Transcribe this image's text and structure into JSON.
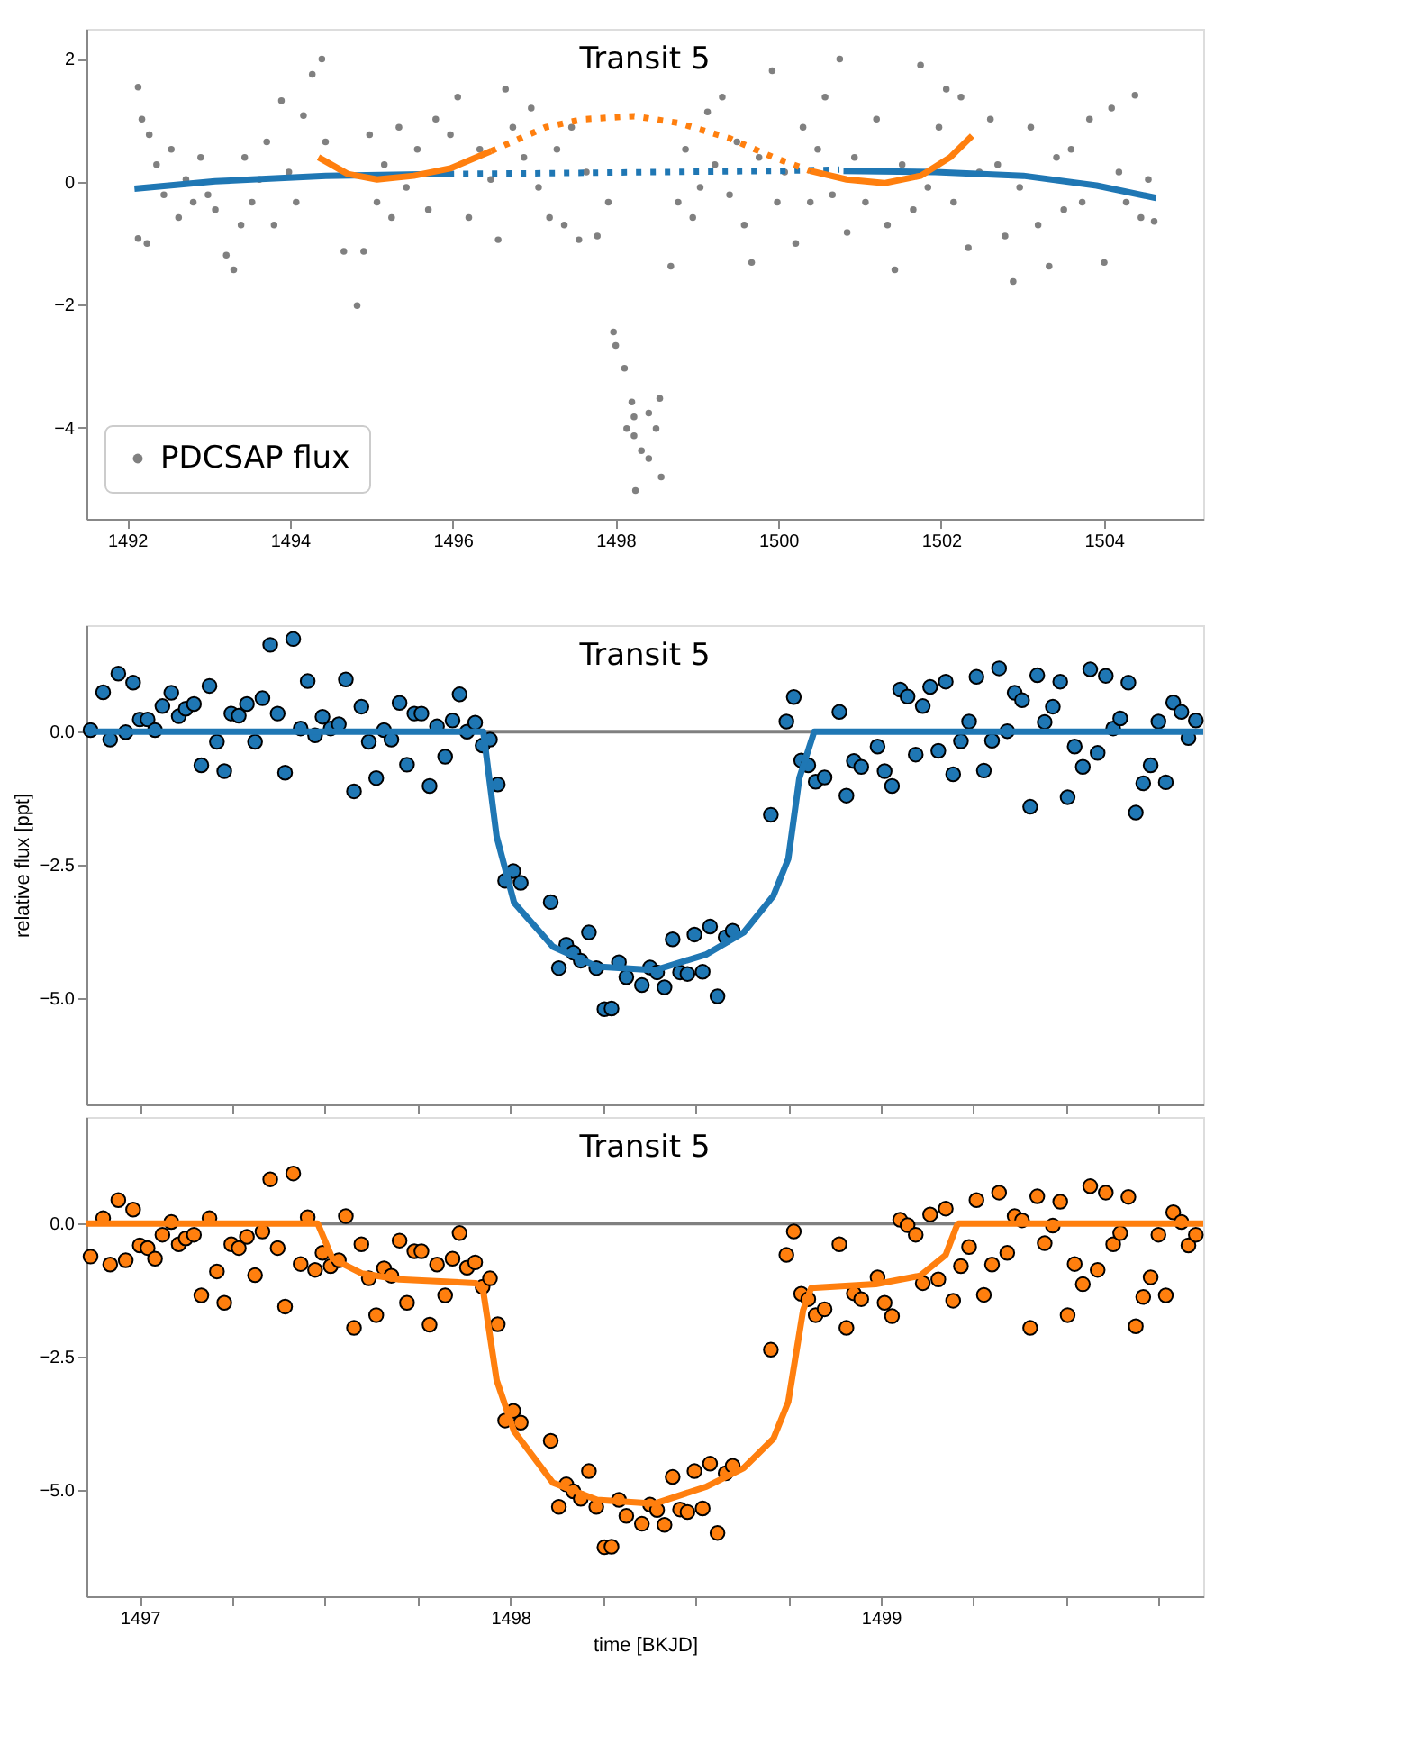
{
  "chart_data": [
    {
      "type": "scatter",
      "title": "Transit 5",
      "legend": "bottom left",
      "xlim": [
        1491.5,
        1505.22
      ],
      "ylim": [
        -5.48,
        2.49
      ],
      "xticks": [
        1492,
        1494,
        1496,
        1498,
        1500,
        1502,
        1504
      ],
      "yticks": [
        {
          "value": -4,
          "label": "−4"
        },
        {
          "value": -2,
          "label": "−2"
        },
        0,
        2
      ],
      "series": [
        {
          "name": "PDCSAP flux",
          "marker": "circle",
          "color": "#808080",
          "x": [
            1492.135,
            1492.181,
            1492.135,
            1492.244,
            1492.271,
            1492.361,
            1492.451,
            1492.542,
            1492.632,
            1492.722,
            1492.812,
            1492.903,
            1492.993,
            1493.083,
            1493.218,
            1493.309,
            1493.399,
            1493.444,
            1493.534,
            1493.625,
            1493.715,
            1493.805,
            1493.895,
            1493.986,
            1494.076,
            1494.166,
            1494.274,
            1494.392,
            1494.437,
            1494.662,
            1494.825,
            1494.906,
            1494.978,
            1495.069,
            1495.159,
            1495.249,
            1495.339,
            1495.43,
            1495.565,
            1495.7,
            1495.791,
            1495.971,
            1496.061,
            1496.197,
            1496.332,
            1496.467,
            1496.558,
            1496.648,
            1496.738,
            1496.874,
            1496.964,
            1497.054,
            1497.189,
            1497.28,
            1497.37,
            1497.46,
            1497.55,
            1497.641,
            1497.776,
            1497.911,
            1497.975,
            1498.002,
            1498.11,
            1498.2,
            1498.137,
            1498.227,
            1498.318,
            1498.408,
            1498.498,
            1498.543,
            1498.408,
            1498.227,
            1498.245,
            1498.561,
            1498.679,
            1498.769,
            1498.859,
            1498.949,
            1499.04,
            1499.13,
            1499.22,
            1499.311,
            1499.401,
            1499.491,
            1499.581,
            1499.672,
            1499.762,
            1499.924,
            1499.987,
            1500.078,
            1500.213,
            1500.303,
            1500.393,
            1500.484,
            1500.574,
            1500.664,
            1500.754,
            1500.845,
            1500.935,
            1501.07,
            1501.206,
            1501.341,
            1501.431,
            1501.521,
            1501.657,
            1501.747,
            1501.837,
            1501.973,
            1502.063,
            1502.153,
            1502.244,
            1502.334,
            1502.469,
            1502.605,
            1502.695,
            1502.785,
            1502.884,
            1502.965,
            1503.101,
            1503.191,
            1503.326,
            1503.417,
            1503.507,
            1503.597,
            1503.733,
            1503.823,
            1504.003,
            1504.094,
            1504.184,
            1504.274,
            1504.382,
            1504.455,
            1504.545,
            1504.617
          ],
          "values": [
            1.54,
            1.02,
            -0.92,
            -1.0,
            0.77,
            0.28,
            -0.21,
            0.53,
            -0.58,
            0.04,
            -0.33,
            0.4,
            -0.21,
            -0.45,
            -1.19,
            -1.43,
            -0.7,
            0.4,
            -0.33,
            0.04,
            0.65,
            -0.7,
            1.32,
            0.16,
            -0.33,
            1.08,
            1.75,
            2.0,
            0.65,
            -1.13,
            -2.01,
            -1.13,
            0.77,
            -0.33,
            0.28,
            -0.58,
            0.89,
            -0.09,
            0.53,
            -0.45,
            1.02,
            0.77,
            1.38,
            -0.58,
            0.53,
            0.04,
            -0.94,
            1.51,
            0.89,
            0.4,
            1.2,
            -0.09,
            -0.58,
            0.53,
            -0.7,
            0.89,
            -0.94,
            0.16,
            -0.88,
            -0.33,
            -2.44,
            -2.66,
            -3.03,
            -3.58,
            -4.01,
            -4.13,
            -4.37,
            -4.5,
            -4.01,
            -3.52,
            -3.76,
            -3.82,
            -5.02,
            -4.8,
            -1.37,
            -0.33,
            0.53,
            -0.58,
            -0.09,
            1.14,
            0.28,
            1.38,
            -0.21,
            0.65,
            -0.7,
            -1.31,
            0.4,
            1.81,
            -0.33,
            0.16,
            -1.0,
            0.89,
            -0.33,
            0.53,
            1.38,
            -0.21,
            2.0,
            -0.82,
            0.4,
            -0.33,
            1.02,
            -0.7,
            -1.43,
            0.28,
            -0.45,
            1.9,
            -0.09,
            0.89,
            1.51,
            -0.33,
            1.38,
            -1.07,
            0.16,
            1.02,
            0.28,
            -0.88,
            -1.62,
            -0.09,
            0.89,
            -0.7,
            -1.37,
            0.4,
            -0.45,
            0.53,
            -0.33,
            1.02,
            -1.31,
            1.2,
            0.16,
            -0.33,
            1.41,
            -0.58,
            0.04,
            -0.64
          ]
        },
        {
          "type": "line",
          "color": "#1f77b4",
          "x": [
            1492.09,
            1493.08,
            1494.44,
            1495.95
          ],
          "values": [
            -0.11,
            0.01,
            0.1,
            0.13
          ]
        },
        {
          "type": "line",
          "color": "#1f77b4",
          "line_style": "dotted",
          "x": [
            1495.95,
            1497.0,
            1498.5,
            1500.0,
            1500.75
          ],
          "values": [
            0.13,
            0.14,
            0.16,
            0.18,
            0.2
          ]
        },
        {
          "type": "line",
          "color": "#1f77b4",
          "x": [
            1500.8,
            1501.93,
            1503.01,
            1503.91,
            1504.64
          ],
          "values": [
            0.18,
            0.16,
            0.1,
            -0.06,
            -0.26
          ]
        },
        {
          "type": "line",
          "color": "#ff7f0e",
          "x": [
            1494.35,
            1494.71,
            1495.07,
            1495.52,
            1495.97,
            1496.47
          ],
          "values": [
            0.4,
            0.13,
            0.04,
            0.1,
            0.22,
            0.5
          ]
        },
        {
          "type": "line",
          "color": "#ff7f0e",
          "line_style": "dotted",
          "x": [
            1496.47,
            1497.14,
            1497.6,
            1498.23,
            1498.77,
            1499.4,
            1499.94,
            1500.39
          ],
          "values": [
            0.5,
            0.89,
            1.02,
            1.07,
            0.96,
            0.71,
            0.4,
            0.18
          ]
        },
        {
          "type": "line",
          "color": "#ff7f0e",
          "x": [
            1500.39,
            1500.84,
            1501.3,
            1501.75,
            1502.11,
            1502.38
          ],
          "values": [
            0.18,
            0.04,
            -0.02,
            0.1,
            0.4,
            0.75
          ]
        }
      ]
    },
    {
      "type": "scatter",
      "title": "Transit 5",
      "ylabel": "relative flux [ppt]",
      "tick_labels": "y",
      "xlim": [
        1496.856,
        1499.87
      ],
      "ylim": [
        -7,
        2
      ],
      "xticks": [
        1497,
        {
          "value": 1497.25,
          "label": null
        },
        {
          "value": 1497.5,
          "label": null
        },
        {
          "value": 1497.75,
          "label": null
        },
        1498,
        {
          "value": 1498.25,
          "label": null
        },
        {
          "value": 1498.5,
          "label": null
        },
        {
          "value": 1498.75,
          "label": null
        },
        1499,
        {
          "value": 1499.25,
          "label": null
        },
        {
          "value": 1499.5,
          "label": null
        },
        {
          "value": 1499.75,
          "label": null
        }
      ],
      "yticks": [
        {
          "value": -5,
          "label": "−5.0"
        },
        {
          "value": -2.5,
          "label": "−2.5"
        },
        {
          "value": 0,
          "label": "0.0"
        }
      ],
      "ref_lines": [
        {
          "axis": "y",
          "value": 0,
          "color": "#808080"
        }
      ],
      "series": [
        {
          "marker": "circle",
          "color": "#1f77b4",
          "x": [
            1496.867,
            1496.901,
            1496.92,
            1496.942,
            1496.962,
            1496.982,
            1497.0,
            1497.021,
            1497.041,
            1497.061,
            1497.085,
            1497.105,
            1497.124,
            1497.146,
            1497.166,
            1497.188,
            1497.208,
            1497.228,
            1497.247,
            1497.267,
            1497.289,
            1497.311,
            1497.331,
            1497.352,
            1497.372,
            1497.392,
            1497.414,
            1497.434,
            1497.453,
            1497.473,
            1497.493,
            1497.515,
            1497.537,
            1497.556,
            1497.578,
            1497.598,
            1497.618,
            1497.638,
            1497.659,
            1497.679,
            1497.701,
            1497.721,
            1497.741,
            1497.76,
            1497.782,
            1497.802,
            1497.824,
            1497.844,
            1497.863,
            1497.883,
            1497.905,
            1497.925,
            1497.945,
            1497.966,
            1497.986,
            1498.008,
            1498.028,
            1498.109,
            1498.131,
            1498.151,
            1498.17,
            1498.19,
            1498.212,
            1498.232,
            1498.254,
            1498.273,
            1498.293,
            1498.313,
            1498.355,
            1498.377,
            1498.396,
            1498.416,
            1498.438,
            1498.458,
            1498.478,
            1498.497,
            1498.519,
            1498.539,
            1498.559,
            1498.581,
            1498.6,
            1498.703,
            1498.745,
            1498.765,
            1498.785,
            1498.804,
            1498.824,
            1498.848,
            1498.888,
            1498.907,
            1498.927,
            1498.947,
            1498.991,
            1499.01,
            1499.03,
            1499.052,
            1499.072,
            1499.094,
            1499.113,
            1499.133,
            1499.155,
            1499.175,
            1499.195,
            1499.216,
            1499.238,
            1499.258,
            1499.278,
            1499.3,
            1499.319,
            1499.341,
            1499.361,
            1499.381,
            1499.403,
            1499.422,
            1499.442,
            1499.464,
            1499.484,
            1499.504,
            1499.523,
            1499.545,
            1499.565,
            1499.585,
            1499.607,
            1499.627,
            1499.646,
            1499.668,
            1499.688,
            1499.708,
            1499.728,
            1499.749,
            1499.769,
            1499.789,
            1499.811,
            1499.83,
            1499.85
          ],
          "values": [
            0.03,
            0.74,
            -0.15,
            1.09,
            -0.01,
            0.92,
            0.23,
            0.23,
            0.03,
            0.48,
            0.73,
            0.29,
            0.43,
            0.52,
            -0.63,
            0.86,
            -0.19,
            -0.74,
            0.34,
            0.3,
            0.52,
            -0.19,
            0.63,
            1.63,
            0.34,
            -0.77,
            1.74,
            0.06,
            0.95,
            -0.07,
            0.28,
            0.06,
            0.14,
            0.98,
            -1.12,
            0.47,
            -0.19,
            -0.87,
            0.03,
            -0.15,
            0.54,
            -0.62,
            0.34,
            0.34,
            -1.02,
            0.1,
            -0.47,
            0.21,
            0.7,
            0.0,
            0.17,
            -0.26,
            -0.15,
            -0.99,
            -2.8,
            -2.62,
            -2.84,
            -3.2,
            -4.44,
            -4.0,
            -4.15,
            -4.3,
            -3.77,
            -4.44,
            -5.21,
            -5.2,
            -4.33,
            -4.61,
            -4.76,
            -4.43,
            -4.52,
            -4.8,
            -3.9,
            -4.52,
            -4.55,
            -3.81,
            -4.51,
            -3.66,
            -4.97,
            -3.86,
            -3.74,
            -1.56,
            0.19,
            0.65,
            -0.54,
            -0.63,
            -0.94,
            -0.86,
            0.37,
            -1.2,
            -0.55,
            -0.66,
            -0.28,
            -0.74,
            -1.02,
            0.79,
            0.66,
            -0.43,
            0.48,
            0.84,
            -0.36,
            0.94,
            -0.8,
            -0.18,
            0.19,
            1.03,
            -0.73,
            -0.17,
            1.19,
            0.01,
            0.73,
            0.59,
            -1.41,
            1.06,
            0.18,
            0.47,
            0.94,
            -1.23,
            -0.28,
            -0.66,
            1.17,
            -0.4,
            1.05,
            0.06,
            0.25,
            0.92,
            -1.52,
            -0.97,
            -0.63,
            0.19,
            -0.95,
            0.55,
            0.37,
            -0.12,
            0.21
          ]
        },
        {
          "type": "line",
          "color": "#1f77b4",
          "x": [
            1496.856,
            1497.927,
            1497.963,
            1498.01,
            1498.115,
            1498.234,
            1498.39,
            1498.53,
            1498.63,
            1498.71,
            1498.75,
            1498.78,
            1498.82,
            1499.87
          ],
          "values": [
            0,
            0,
            -1.97,
            -3.21,
            -4.04,
            -4.41,
            -4.48,
            -4.18,
            -3.77,
            -3.08,
            -2.39,
            -0.87,
            0,
            0
          ]
        }
      ]
    },
    {
      "type": "scatter",
      "title": "Transit 5",
      "xlabel": "time [BKJD]",
      "xlim": [
        1496.856,
        1499.87
      ],
      "ylim": [
        -7,
        2
      ],
      "xticks": [
        1497,
        {
          "value": 1497.25,
          "label": null
        },
        {
          "value": 1497.5,
          "label": null
        },
        {
          "value": 1497.75,
          "label": null
        },
        1498,
        {
          "value": 1498.25,
          "label": null
        },
        {
          "value": 1498.5,
          "label": null
        },
        {
          "value": 1498.75,
          "label": null
        },
        1499,
        {
          "value": 1499.25,
          "label": null
        },
        {
          "value": 1499.5,
          "label": null
        },
        {
          "value": 1499.75,
          "label": null
        }
      ],
      "yticks": [
        {
          "value": -5,
          "label": "−5.0"
        },
        {
          "value": -2.5,
          "label": "−2.5"
        },
        {
          "value": 0,
          "label": "0.0"
        }
      ],
      "ref_lines": [
        {
          "axis": "y",
          "value": 0,
          "color": "#808080"
        }
      ],
      "series": [
        {
          "marker": "circle",
          "color": "#ff7f0e",
          "x": [
            1496.867,
            1496.901,
            1496.92,
            1496.942,
            1496.962,
            1496.982,
            1497.0,
            1497.021,
            1497.041,
            1497.061,
            1497.085,
            1497.105,
            1497.124,
            1497.146,
            1497.166,
            1497.188,
            1497.208,
            1497.228,
            1497.247,
            1497.267,
            1497.289,
            1497.311,
            1497.331,
            1497.352,
            1497.372,
            1497.392,
            1497.414,
            1497.434,
            1497.453,
            1497.473,
            1497.493,
            1497.515,
            1497.537,
            1497.556,
            1497.578,
            1497.598,
            1497.618,
            1497.638,
            1497.659,
            1497.679,
            1497.701,
            1497.721,
            1497.741,
            1497.76,
            1497.782,
            1497.802,
            1497.824,
            1497.844,
            1497.863,
            1497.883,
            1497.905,
            1497.925,
            1497.945,
            1497.966,
            1497.986,
            1498.008,
            1498.028,
            1498.109,
            1498.131,
            1498.151,
            1498.17,
            1498.19,
            1498.212,
            1498.232,
            1498.254,
            1498.273,
            1498.293,
            1498.313,
            1498.355,
            1498.377,
            1498.396,
            1498.416,
            1498.438,
            1498.458,
            1498.478,
            1498.497,
            1498.519,
            1498.539,
            1498.559,
            1498.581,
            1498.6,
            1498.703,
            1498.745,
            1498.765,
            1498.785,
            1498.804,
            1498.824,
            1498.848,
            1498.888,
            1498.907,
            1498.927,
            1498.947,
            1498.991,
            1499.01,
            1499.03,
            1499.052,
            1499.072,
            1499.094,
            1499.113,
            1499.133,
            1499.155,
            1499.175,
            1499.195,
            1499.216,
            1499.238,
            1499.258,
            1499.278,
            1499.3,
            1499.319,
            1499.341,
            1499.361,
            1499.381,
            1499.403,
            1499.422,
            1499.442,
            1499.464,
            1499.484,
            1499.504,
            1499.523,
            1499.545,
            1499.565,
            1499.585,
            1499.607,
            1499.627,
            1499.646,
            1499.668,
            1499.688,
            1499.708,
            1499.728,
            1499.749,
            1499.769,
            1499.789,
            1499.811,
            1499.83,
            1499.85
          ],
          "values": [
            -0.62,
            0.1,
            -0.77,
            0.44,
            -0.69,
            0.26,
            -0.41,
            -0.46,
            -0.66,
            -0.21,
            0.03,
            -0.39,
            -0.28,
            -0.21,
            -1.35,
            0.1,
            -0.9,
            -1.49,
            -0.39,
            -0.46,
            -0.25,
            -0.97,
            -0.15,
            0.83,
            -0.46,
            -1.56,
            0.94,
            -0.76,
            0.12,
            -0.87,
            -0.55,
            -0.8,
            -0.69,
            0.14,
            -1.96,
            -0.39,
            -1.03,
            -1.72,
            -0.84,
            -0.98,
            -0.32,
            -1.49,
            -0.52,
            -0.52,
            -1.9,
            -0.77,
            -1.35,
            -0.66,
            -0.18,
            -0.83,
            -0.73,
            -1.19,
            -1.03,
            -1.89,
            -3.7,
            -3.52,
            -3.74,
            -4.08,
            -5.32,
            -4.9,
            -5.03,
            -5.17,
            -4.65,
            -5.32,
            -6.08,
            -6.07,
            -5.19,
            -5.49,
            -5.64,
            -5.28,
            -5.38,
            -5.66,
            -4.76,
            -5.37,
            -5.42,
            -4.65,
            -5.35,
            -4.51,
            -5.81,
            -4.69,
            -4.55,
            -2.37,
            -0.59,
            -0.15,
            -1.32,
            -1.42,
            -1.72,
            -1.61,
            -0.39,
            -1.96,
            -1.31,
            -1.42,
            -1.01,
            -1.49,
            -1.74,
            0.07,
            -0.03,
            -0.21,
            -1.12,
            0.17,
            -1.05,
            0.28,
            -1.45,
            -0.8,
            -0.44,
            0.44,
            -1.34,
            -0.77,
            0.58,
            -0.55,
            0.14,
            0.06,
            -1.96,
            0.51,
            -0.37,
            -0.04,
            0.41,
            -1.72,
            -0.76,
            -1.14,
            0.7,
            -0.87,
            0.58,
            -0.39,
            -0.18,
            0.5,
            -1.93,
            -1.38,
            -1.01,
            -0.21,
            -1.35,
            0.21,
            0.03,
            -0.41,
            -0.21
          ]
        },
        {
          "type": "line",
          "color": "#ff7f0e",
          "x": [
            1496.856,
            1497.48,
            1497.52,
            1497.6,
            1497.7,
            1497.907,
            1497.927,
            1497.963,
            1498.01,
            1498.115,
            1498.234,
            1498.39,
            1498.53,
            1498.63,
            1498.71,
            1498.75,
            1498.79,
            1498.812,
            1498.986,
            1499.106,
            1499.175,
            1499.205,
            1499.21,
            1499.87
          ],
          "values": [
            0,
            0,
            -0.66,
            -0.94,
            -1.05,
            -1.12,
            -1.28,
            -2.94,
            -3.9,
            -4.87,
            -5.19,
            -5.26,
            -4.94,
            -4.59,
            -4.04,
            -3.35,
            -1.63,
            -1.21,
            -1.14,
            -0.98,
            -0.59,
            -0.04,
            0,
            0
          ]
        }
      ]
    }
  ]
}
